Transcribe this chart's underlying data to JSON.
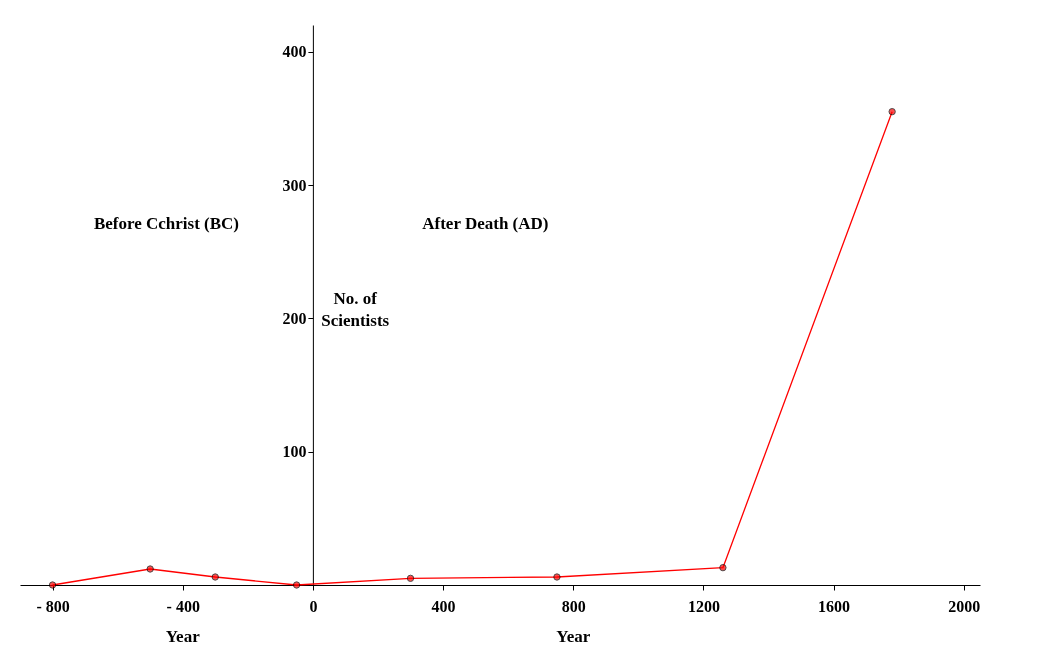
{
  "chart_data": {
    "type": "line",
    "x": [
      -800,
      -500,
      -300,
      -50,
      300,
      750,
      1260,
      1780
    ],
    "series": [
      {
        "color": "#ff0000",
        "values": [
          0,
          12,
          6,
          0,
          5,
          6,
          13,
          355
        ]
      }
    ],
    "xlabel": "Year",
    "ylabel": "No. of Scientists",
    "xlim": [
      -900,
      2050
    ],
    "ylim": [
      0,
      420
    ],
    "xticks": [
      {
        "value": -800,
        "label": "- 800"
      },
      {
        "value": -400,
        "label": "- 400"
      },
      0,
      400,
      800,
      1200,
      1600,
      2000
    ],
    "yticks": [
      100,
      200,
      300,
      400
    ],
    "annotations": [
      "Before Cchrist (BC)",
      "After Death (AD)",
      "Year"
    ],
    "marker": "circle",
    "grid": false
  }
}
